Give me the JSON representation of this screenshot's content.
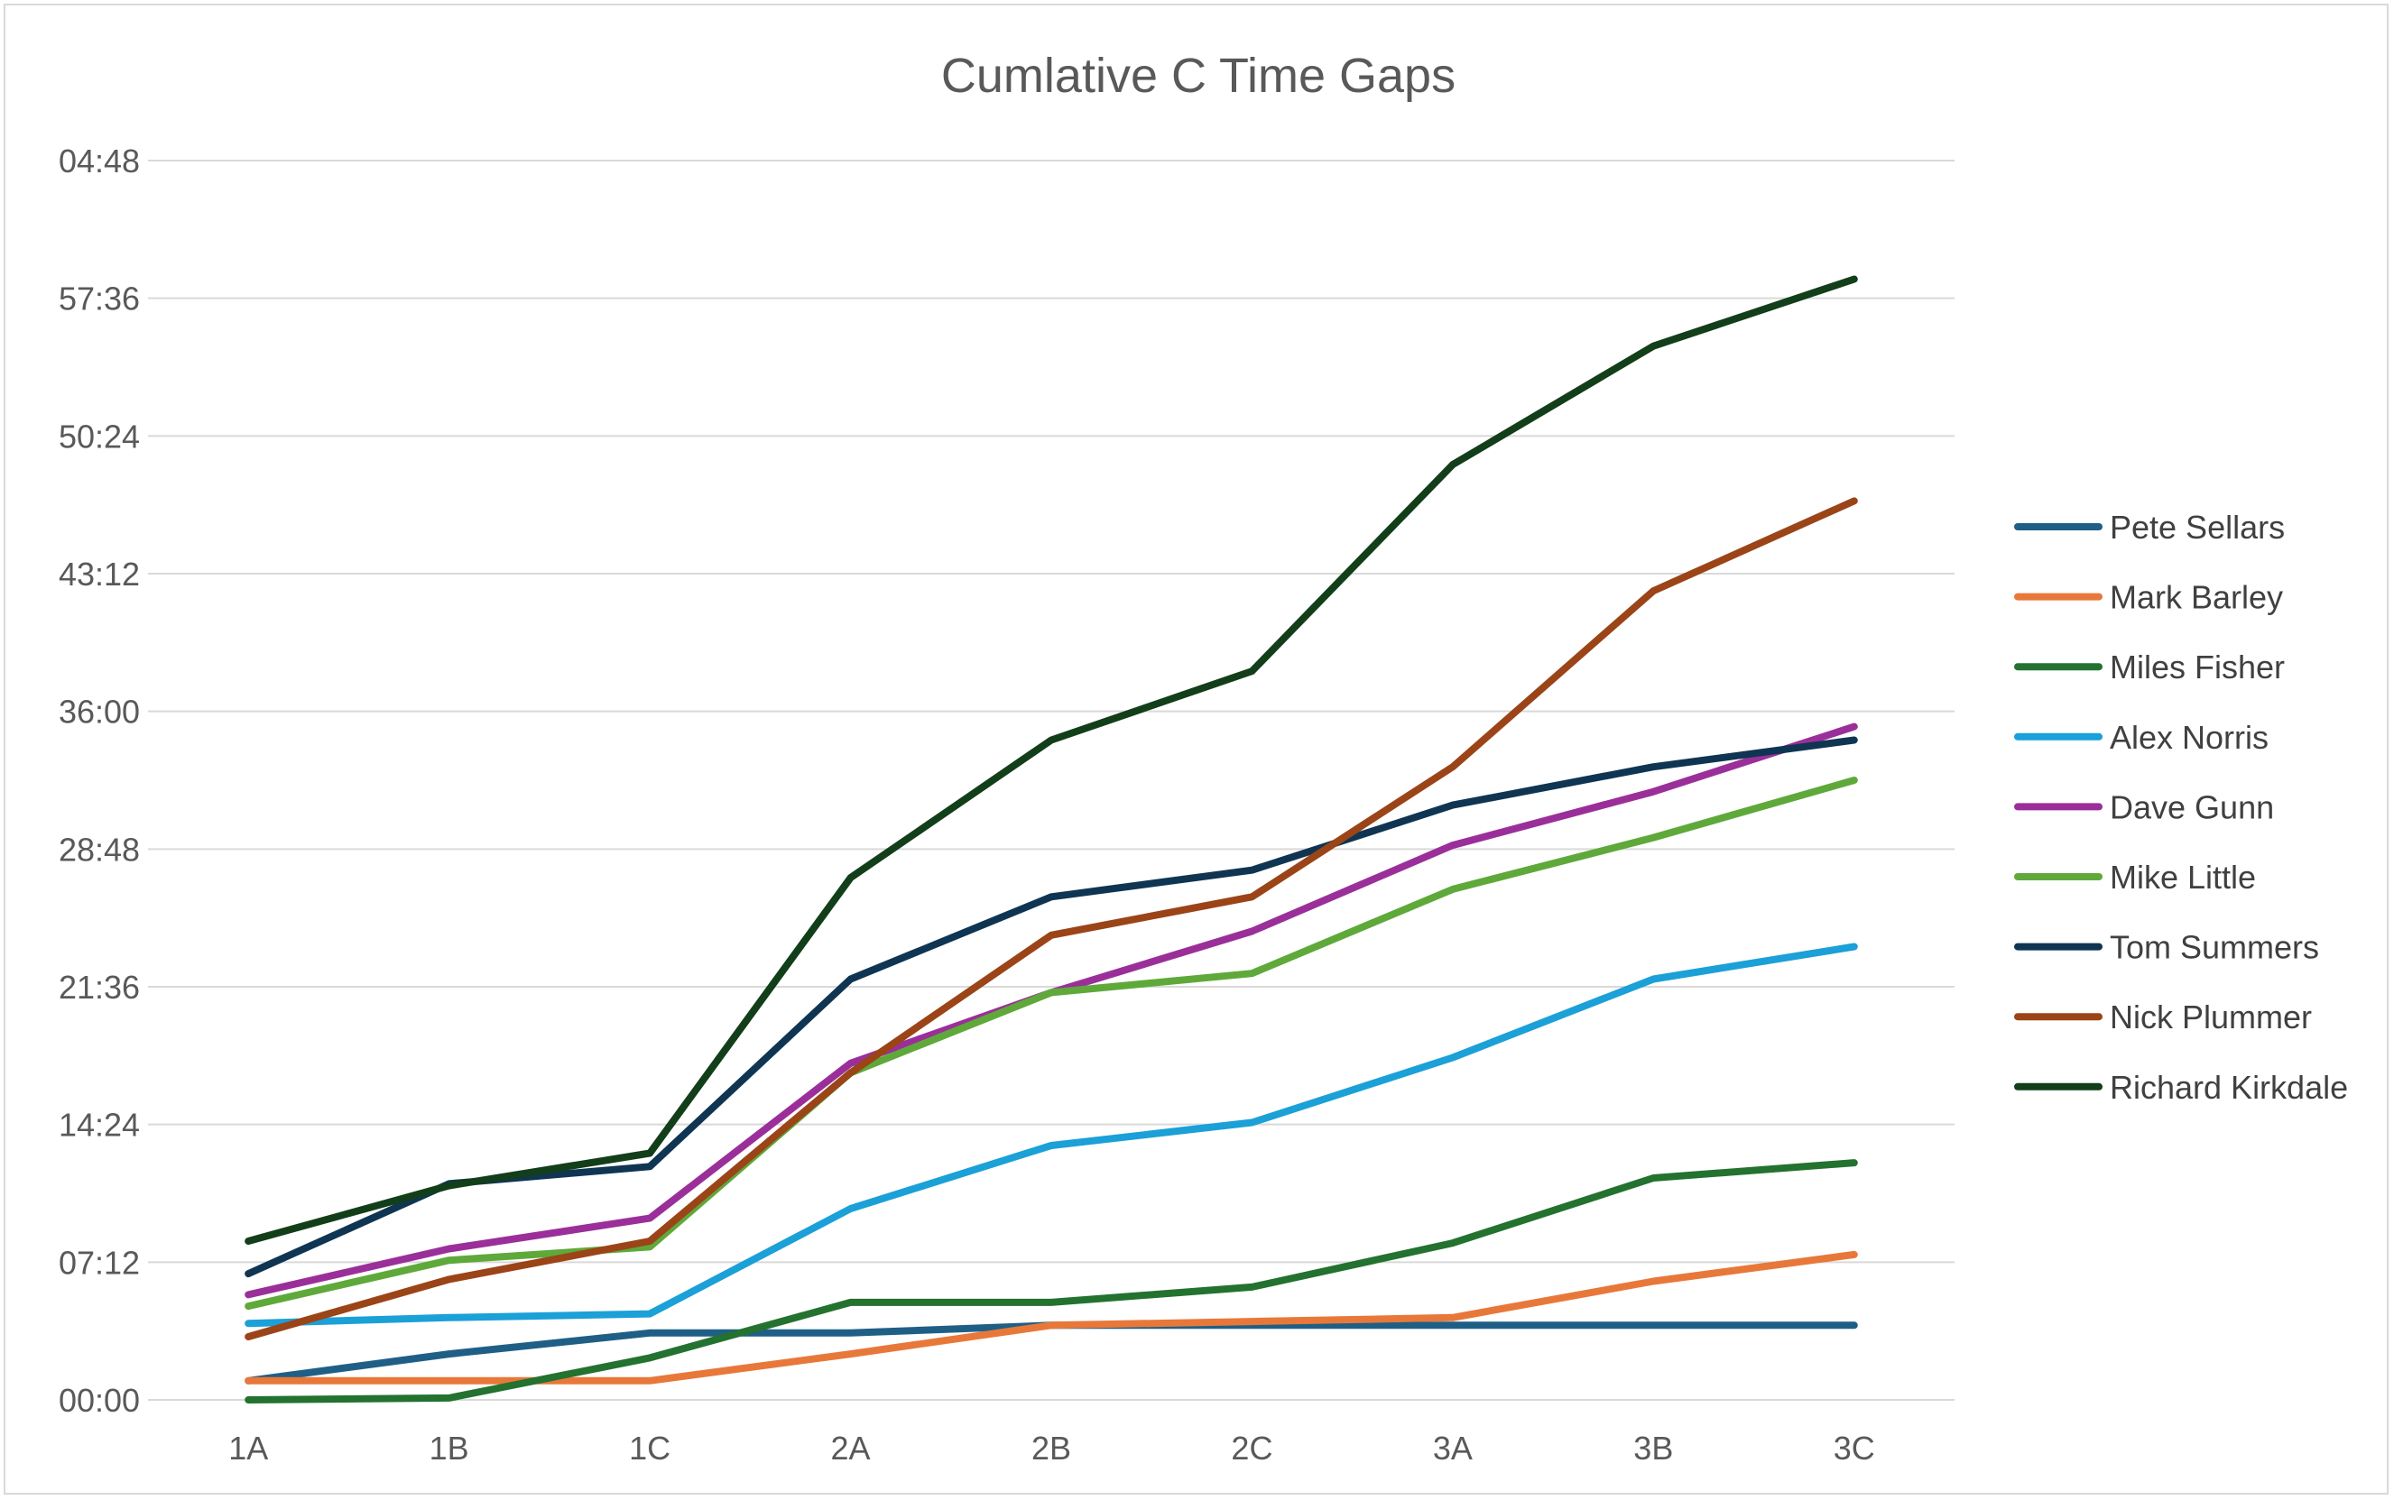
{
  "chart_data": {
    "type": "line",
    "title": "Cumlative C Time Gaps",
    "xlabel": "",
    "ylabel": "",
    "categories": [
      "1A",
      "1B",
      "1C",
      "2A",
      "2B",
      "2C",
      "3A",
      "3B",
      "3C"
    ],
    "y_tick_labels": [
      "00:00",
      "07:12",
      "14:24",
      "21:36",
      "28:48",
      "36:00",
      "43:12",
      "50:24",
      "57:36",
      "04:48"
    ],
    "y_unit": "minutes",
    "ylim": [
      0,
      64.8
    ],
    "y_tick_step": 7.2,
    "grid": true,
    "legend_position": "right",
    "series": [
      {
        "name": "Pete Sellars",
        "color": "#1f5f86",
        "values": [
          1.0,
          2.4,
          3.5,
          3.5,
          3.9,
          3.9,
          3.9,
          3.9,
          3.9
        ]
      },
      {
        "name": "Mark Barley",
        "color": "#e8783a",
        "values": [
          1.0,
          1.0,
          1.0,
          2.4,
          3.9,
          4.1,
          4.3,
          6.2,
          7.6
        ]
      },
      {
        "name": "Miles Fisher",
        "color": "#23722f",
        "values": [
          0.0,
          0.1,
          2.2,
          5.1,
          5.1,
          5.9,
          8.2,
          11.6,
          12.4
        ]
      },
      {
        "name": "Alex Norris",
        "color": "#1ba0d8",
        "values": [
          4.0,
          4.3,
          4.5,
          10.0,
          13.3,
          14.5,
          17.9,
          22.0,
          23.7
        ]
      },
      {
        "name": "Dave Gunn",
        "color": "#9b2f9a",
        "values": [
          5.5,
          7.9,
          9.5,
          17.6,
          21.3,
          24.5,
          29.0,
          31.8,
          35.2
        ]
      },
      {
        "name": "Mike Little",
        "color": "#5ea93a",
        "values": [
          4.9,
          7.3,
          8.0,
          17.1,
          21.3,
          22.3,
          26.7,
          29.4,
          32.4
        ]
      },
      {
        "name": "Tom Summers",
        "color": "#0f3552",
        "values": [
          6.6,
          11.3,
          12.2,
          22.0,
          26.3,
          27.7,
          31.1,
          33.1,
          34.5
        ]
      },
      {
        "name": "Nick Plummer",
        "color": "#9b4418",
        "values": [
          3.3,
          6.3,
          8.3,
          17.1,
          24.3,
          26.3,
          33.1,
          42.3,
          47.0
        ]
      },
      {
        "name": "Richard Kirkdale",
        "color": "#123e1a",
        "values": [
          8.3,
          11.2,
          12.9,
          27.3,
          34.5,
          38.1,
          48.9,
          55.1,
          58.6
        ]
      }
    ]
  }
}
